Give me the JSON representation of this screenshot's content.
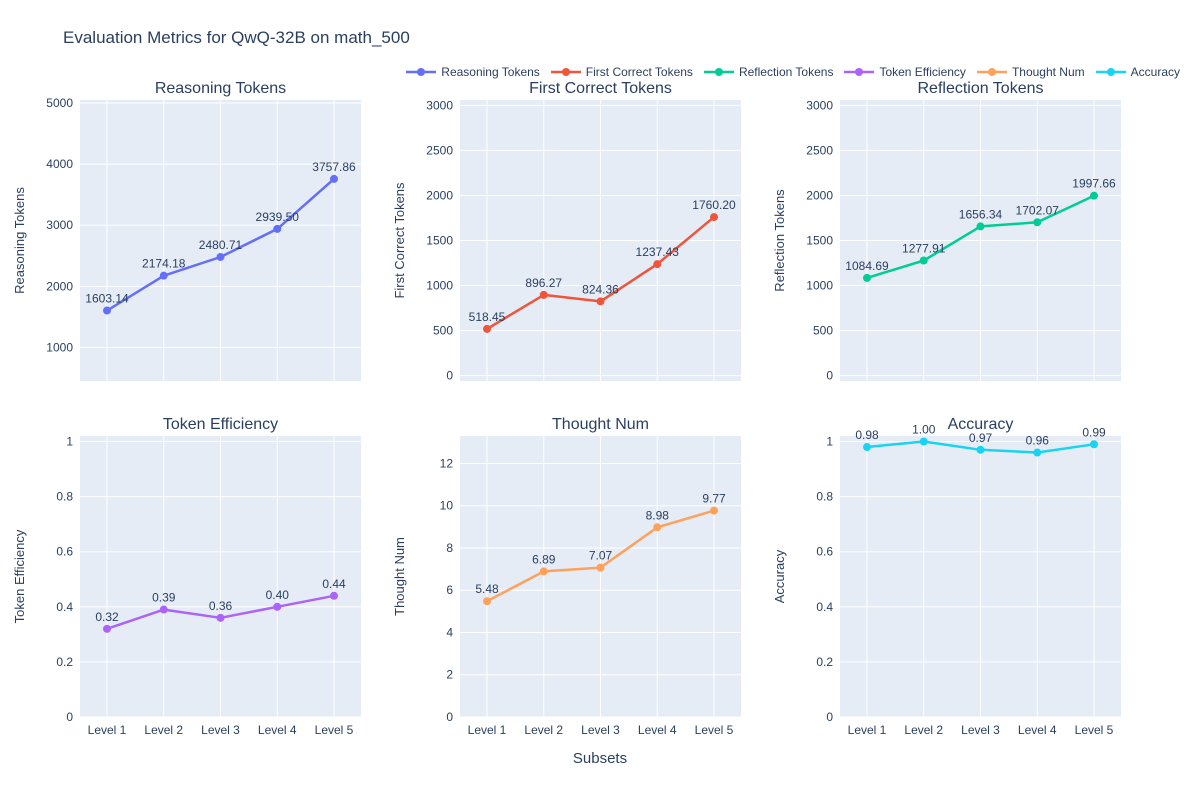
{
  "title": "Evaluation Metrics for QwQ-32B on math_500",
  "xlabel": "Subsets",
  "colors": {
    "text": "#2a3f5f",
    "plot_background": "#e5ecf6",
    "gridline": "#ffffff",
    "paper_background": "#ffffff"
  },
  "legend": {
    "items": [
      {
        "label": "Reasoning Tokens",
        "color": "#636EFA"
      },
      {
        "label": "First Correct Tokens",
        "color": "#EF553B"
      },
      {
        "label": "Reflection Tokens",
        "color": "#00CC96"
      },
      {
        "label": "Token Efficiency",
        "color": "#AB63FA"
      },
      {
        "label": "Thought Num",
        "color": "#FFA15A"
      },
      {
        "label": "Accuracy",
        "color": "#19D3F3"
      }
    ]
  },
  "chart_data": [
    {
      "type": "line",
      "title": "Reasoning Tokens",
      "ylabel": "Reasoning Tokens",
      "color": "#636EFA",
      "categories": [
        "Level 1",
        "Level 2",
        "Level 3",
        "Level 4",
        "Level 5"
      ],
      "values": [
        1603.14,
        2174.18,
        2480.71,
        2939.5,
        3757.86
      ],
      "labels": [
        "1603.14",
        "2174.18",
        "2480.71",
        "2939.50",
        "3757.86"
      ],
      "ytick_values": [
        1000,
        2000,
        3000,
        4000,
        5000
      ],
      "ytick_labels": [
        "1000",
        "2000",
        "3000",
        "4000",
        "5000"
      ],
      "ylim": [
        450,
        5050
      ],
      "show_x_ticks": false,
      "grid": true,
      "legend_position": "top"
    },
    {
      "type": "line",
      "title": "First Correct Tokens",
      "ylabel": "First Correct Tokens",
      "color": "#EF553B",
      "categories": [
        "Level 1",
        "Level 2",
        "Level 3",
        "Level 4",
        "Level 5"
      ],
      "values": [
        518.45,
        896.27,
        824.36,
        1237.43,
        1760.2
      ],
      "labels": [
        "518.45",
        "896.27",
        "824.36",
        "1237.43",
        "1760.20"
      ],
      "ytick_values": [
        0,
        500,
        1000,
        1500,
        2000,
        2500,
        3000
      ],
      "ytick_labels": [
        "0",
        "500",
        "1000",
        "1500",
        "2000",
        "2500",
        "3000"
      ],
      "ylim": [
        -60,
        3060
      ],
      "show_x_ticks": false,
      "grid": true,
      "legend_position": "top"
    },
    {
      "type": "line",
      "title": "Reflection Tokens",
      "ylabel": "Reflection Tokens",
      "color": "#00CC96",
      "categories": [
        "Level 1",
        "Level 2",
        "Level 3",
        "Level 4",
        "Level 5"
      ],
      "values": [
        1084.69,
        1277.91,
        1656.34,
        1702.07,
        1997.66
      ],
      "labels": [
        "1084.69",
        "1277.91",
        "1656.34",
        "1702.07",
        "1997.66"
      ],
      "ytick_values": [
        0,
        500,
        1000,
        1500,
        2000,
        2500,
        3000
      ],
      "ytick_labels": [
        "0",
        "500",
        "1000",
        "1500",
        "2000",
        "2500",
        "3000"
      ],
      "ylim": [
        -60,
        3060
      ],
      "show_x_ticks": false,
      "grid": true,
      "legend_position": "top"
    },
    {
      "type": "line",
      "title": "Token Efficiency",
      "ylabel": "Token Efficiency",
      "color": "#AB63FA",
      "categories": [
        "Level 1",
        "Level 2",
        "Level 3",
        "Level 4",
        "Level 5"
      ],
      "values": [
        0.32,
        0.39,
        0.36,
        0.4,
        0.44
      ],
      "labels": [
        "0.32",
        "0.39",
        "0.36",
        "0.40",
        "0.44"
      ],
      "ytick_values": [
        0,
        0.2,
        0.4,
        0.6,
        0.8,
        1
      ],
      "ytick_labels": [
        "0",
        "0.2",
        "0.4",
        "0.6",
        "0.8",
        "1"
      ],
      "ylim": [
        0,
        1.02
      ],
      "show_x_ticks": true,
      "grid": true,
      "legend_position": "top"
    },
    {
      "type": "line",
      "title": "Thought Num",
      "ylabel": "Thought Num",
      "color": "#FFA15A",
      "categories": [
        "Level 1",
        "Level 2",
        "Level 3",
        "Level 4",
        "Level 5"
      ],
      "values": [
        5.48,
        6.89,
        7.07,
        8.98,
        9.77
      ],
      "labels": [
        "5.48",
        "6.89",
        "7.07",
        "8.98",
        "9.77"
      ],
      "ytick_values": [
        0,
        2,
        4,
        6,
        8,
        10,
        12
      ],
      "ytick_labels": [
        "0",
        "2",
        "4",
        "6",
        "8",
        "10",
        "12"
      ],
      "ylim": [
        0,
        13.3
      ],
      "show_x_ticks": true,
      "grid": true,
      "legend_position": "top"
    },
    {
      "type": "line",
      "title": "Accuracy",
      "ylabel": "Accuracy",
      "color": "#19D3F3",
      "categories": [
        "Level 1",
        "Level 2",
        "Level 3",
        "Level 4",
        "Level 5"
      ],
      "values": [
        0.98,
        1.0,
        0.97,
        0.96,
        0.99
      ],
      "labels": [
        "0.98",
        "1.00",
        "0.97",
        "0.96",
        "0.99"
      ],
      "ytick_values": [
        0,
        0.2,
        0.4,
        0.6,
        0.8,
        1
      ],
      "ytick_labels": [
        "0",
        "0.2",
        "0.4",
        "0.6",
        "0.8",
        "1"
      ],
      "ylim": [
        0,
        1.02
      ],
      "show_x_ticks": true,
      "grid": true,
      "legend_position": "top"
    }
  ]
}
